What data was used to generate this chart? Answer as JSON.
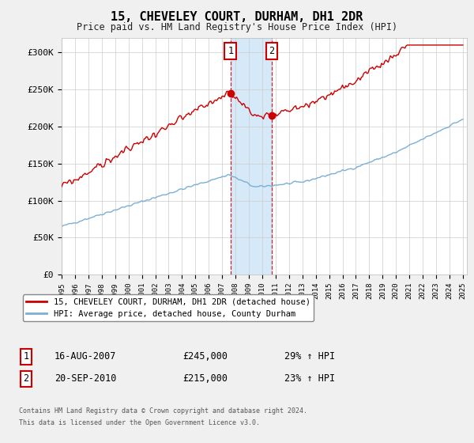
{
  "title": "15, CHEVELEY COURT, DURHAM, DH1 2DR",
  "subtitle": "Price paid vs. HM Land Registry's House Price Index (HPI)",
  "ylim": [
    0,
    320000
  ],
  "yticks": [
    0,
    50000,
    100000,
    150000,
    200000,
    250000,
    300000
  ],
  "ytick_labels": [
    "£0",
    "£50K",
    "£100K",
    "£150K",
    "£200K",
    "£250K",
    "£300K"
  ],
  "hpi_color": "#7ab0d4",
  "price_color": "#cc0000",
  "marker1_year": 2007.625,
  "marker1_price": 245000,
  "marker1_label": "1",
  "marker1_date": "16-AUG-2007",
  "marker1_amount": "£245,000",
  "marker1_pct": "29% ↑ HPI",
  "marker2_year": 2010.72,
  "marker2_price": 215000,
  "marker2_label": "2",
  "marker2_date": "20-SEP-2010",
  "marker2_amount": "£215,000",
  "marker2_pct": "23% ↑ HPI",
  "legend_line1": "15, CHEVELEY COURT, DURHAM, DH1 2DR (detached house)",
  "legend_line2": "HPI: Average price, detached house, County Durham",
  "footnote1": "Contains HM Land Registry data © Crown copyright and database right 2024.",
  "footnote2": "This data is licensed under the Open Government Licence v3.0.",
  "bg_color": "#f0f0f0",
  "plot_bg_color": "#ffffff",
  "highlight_color": "#cce4f7"
}
